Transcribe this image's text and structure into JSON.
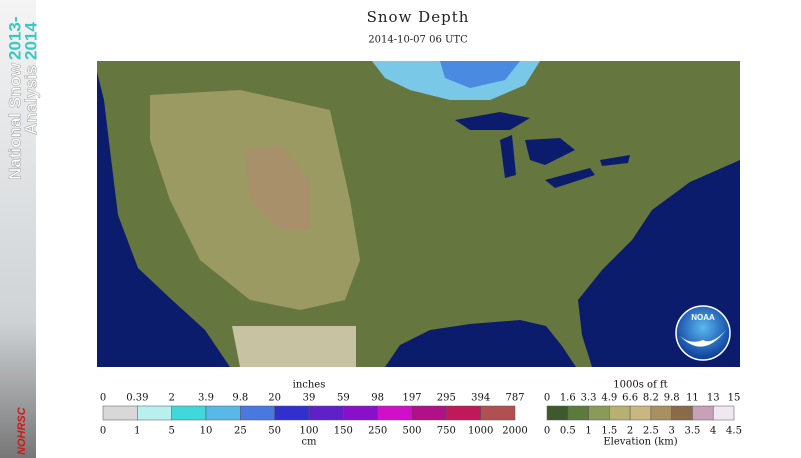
{
  "header": {
    "title": "Snow Depth",
    "subtitle": "2014-10-07 06 UTC"
  },
  "sidebar": {
    "line1": "National Snow",
    "line2": "Analysis",
    "years_top": "2013-",
    "years_bottom": "2014",
    "logo": "NOHRSC"
  },
  "map": {
    "logo": "NOAA"
  },
  "snow_legend": {
    "top_title": "inches",
    "bottom_title": "cm",
    "top_labels": [
      "0",
      "0.39",
      "2",
      "3.9",
      "9.8",
      "20",
      "39",
      "59",
      "98",
      "197",
      "295",
      "394",
      "787"
    ],
    "bottom_labels": [
      "0",
      "1",
      "5",
      "10",
      "25",
      "50",
      "100",
      "150",
      "250",
      "500",
      "750",
      "1000",
      "2000"
    ],
    "colors": [
      "#d8d8d8",
      "#b8f0ee",
      "#40d8d8",
      "#58b8e8",
      "#4878e0",
      "#3030d0",
      "#6020c8",
      "#8810c8",
      "#d010c8",
      "#b01088",
      "#c01858",
      "#b05050"
    ]
  },
  "elev_legend": {
    "top_title": "1000s of ft",
    "bottom_title": "Elevation (km)",
    "top_labels": [
      "0",
      "1.6",
      "3.3",
      "4.9",
      "6.6",
      "8.2",
      "9.8",
      "11",
      "13",
      "15"
    ],
    "bottom_labels": [
      "0",
      "0.5",
      "1",
      "1.5",
      "2",
      "2.5",
      "3",
      "3.5",
      "4",
      "4.5"
    ],
    "colors": [
      "#3e5a2c",
      "#5c7a3c",
      "#8a9a58",
      "#b8b070",
      "#c8b880",
      "#a89060",
      "#8a6a48",
      "#c8a0b8",
      "#f0e8f0"
    ]
  }
}
